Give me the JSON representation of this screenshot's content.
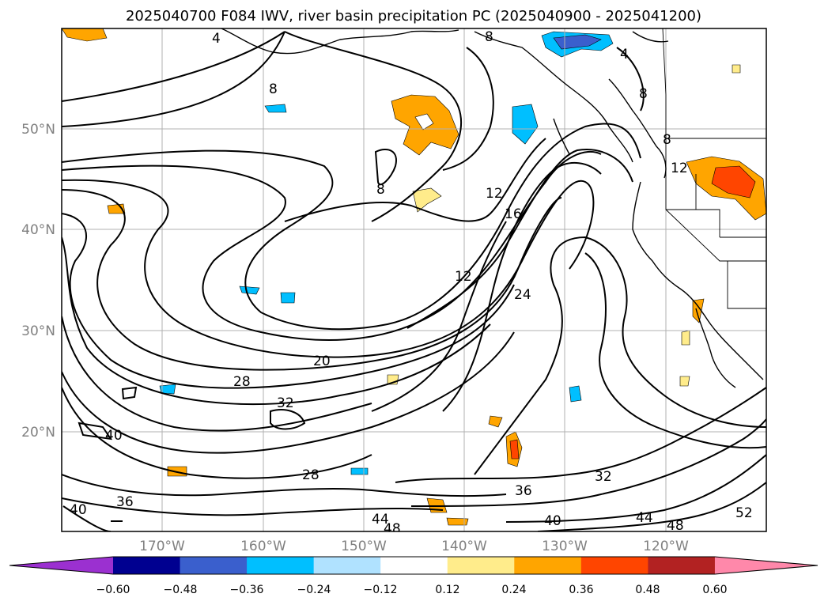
{
  "title": "2025040700 F084 IWV, river basin precipitation PC (2025040900 - 2025041200)",
  "latitude_labels": [
    "50°N",
    "40°N",
    "30°N",
    "20°N"
  ],
  "longitude_labels": [
    "170°W",
    "160°W",
    "150°W",
    "140°W",
    "130°W",
    "120°W"
  ],
  "contour_labels": [
    "4",
    "8",
    "8",
    "8",
    "12",
    "16",
    "12",
    "24",
    "20",
    "28",
    "32",
    "40",
    "28",
    "36",
    "36",
    "32",
    "40",
    "44",
    "48",
    "44",
    "48",
    "52",
    "40",
    "8",
    "4",
    "12",
    "8"
  ],
  "colorbar": {
    "ticks": [
      "−0.60",
      "−0.48",
      "−0.36",
      "−0.24",
      "−0.12",
      "0.12",
      "0.24",
      "0.36",
      "0.48",
      "0.60"
    ],
    "colors": [
      "#9b30d0",
      "#000090",
      "#3a5fcd",
      "#00bfff",
      "#b0e2ff",
      "#ffffff",
      "#ffec8b",
      "#ffa500",
      "#ff4500",
      "#b22222",
      "#ff88aa"
    ]
  }
}
